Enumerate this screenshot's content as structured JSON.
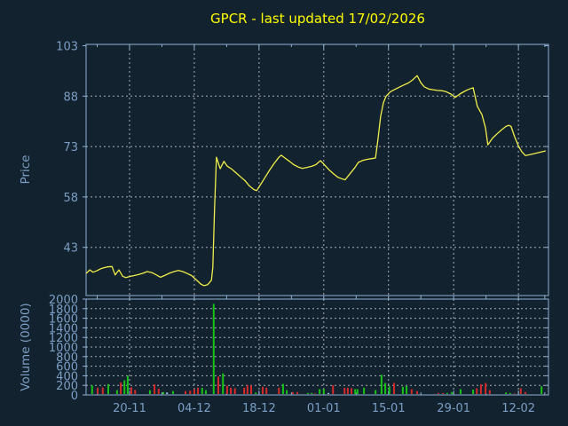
{
  "window": {
    "background": "#13222f"
  },
  "chart_data": {
    "type": "line+bar",
    "title": "GPCR - last updated 17/02/2026",
    "title_color": "#ffff00",
    "axis_color": "#8fb3d6",
    "text_color": "#7b9fc4",
    "grid_color": "#ccd2d8",
    "x_ticks": [
      {
        "label": "20-11",
        "pos": 0.094
      },
      {
        "label": "04-12",
        "pos": 0.234
      },
      {
        "label": "18-12",
        "pos": 0.374
      },
      {
        "label": "01-01",
        "pos": 0.514
      },
      {
        "label": "15-01",
        "pos": 0.654
      },
      {
        "label": "29-01",
        "pos": 0.795
      },
      {
        "label": "12-02",
        "pos": 0.935
      }
    ],
    "x_minor_ticks": [
      0.024,
      0.164,
      0.304,
      0.444,
      0.584,
      0.724,
      0.865,
      0.992
    ],
    "price_panel": {
      "ylabel": "Price",
      "yticks": [
        43,
        58,
        73,
        88,
        103
      ],
      "ymin": 28.5,
      "ymax": 103,
      "line_color": "#f0ee4a",
      "series": [
        [
          0.0,
          35.2
        ],
        [
          0.008,
          36.3
        ],
        [
          0.015,
          35.6
        ],
        [
          0.023,
          36.0
        ],
        [
          0.031,
          36.6
        ],
        [
          0.038,
          36.9
        ],
        [
          0.046,
          37.2
        ],
        [
          0.056,
          37.3
        ],
        [
          0.063,
          34.8
        ],
        [
          0.071,
          36.3
        ],
        [
          0.079,
          34.4
        ],
        [
          0.086,
          34.0
        ],
        [
          0.094,
          34.3
        ],
        [
          0.104,
          34.6
        ],
        [
          0.113,
          34.9
        ],
        [
          0.123,
          35.3
        ],
        [
          0.132,
          35.8
        ],
        [
          0.142,
          35.5
        ],
        [
          0.152,
          34.8
        ],
        [
          0.161,
          34.1
        ],
        [
          0.171,
          34.7
        ],
        [
          0.18,
          35.3
        ],
        [
          0.19,
          35.8
        ],
        [
          0.2,
          36.1
        ],
        [
          0.209,
          35.8
        ],
        [
          0.219,
          35.2
        ],
        [
          0.228,
          34.6
        ],
        [
          0.238,
          33.4
        ],
        [
          0.248,
          32.1
        ],
        [
          0.255,
          31.6
        ],
        [
          0.263,
          31.9
        ],
        [
          0.271,
          33.2
        ],
        [
          0.274,
          37.0
        ],
        [
          0.278,
          55.0
        ],
        [
          0.282,
          69.8
        ],
        [
          0.29,
          66.4
        ],
        [
          0.298,
          68.6
        ],
        [
          0.305,
          67.2
        ],
        [
          0.315,
          66.3
        ],
        [
          0.324,
          65.2
        ],
        [
          0.334,
          64.0
        ],
        [
          0.344,
          62.8
        ],
        [
          0.353,
          61.3
        ],
        [
          0.363,
          60.2
        ],
        [
          0.369,
          59.9
        ],
        [
          0.378,
          61.8
        ],
        [
          0.388,
          64.0
        ],
        [
          0.397,
          66.0
        ],
        [
          0.407,
          68.0
        ],
        [
          0.417,
          69.8
        ],
        [
          0.422,
          70.4
        ],
        [
          0.43,
          69.6
        ],
        [
          0.44,
          68.6
        ],
        [
          0.449,
          67.6
        ],
        [
          0.459,
          66.9
        ],
        [
          0.468,
          66.5
        ],
        [
          0.478,
          66.8
        ],
        [
          0.488,
          67.1
        ],
        [
          0.497,
          67.6
        ],
        [
          0.507,
          68.8
        ],
        [
          0.516,
          67.5
        ],
        [
          0.526,
          66.0
        ],
        [
          0.536,
          64.8
        ],
        [
          0.545,
          63.8
        ],
        [
          0.555,
          63.3
        ],
        [
          0.56,
          63.1
        ],
        [
          0.57,
          64.8
        ],
        [
          0.58,
          66.5
        ],
        [
          0.589,
          68.3
        ],
        [
          0.599,
          68.9
        ],
        [
          0.608,
          69.2
        ],
        [
          0.618,
          69.4
        ],
        [
          0.626,
          69.6
        ],
        [
          0.631,
          75.0
        ],
        [
          0.637,
          82.0
        ],
        [
          0.643,
          86.0
        ],
        [
          0.649,
          88.0
        ],
        [
          0.658,
          89.3
        ],
        [
          0.668,
          90.0
        ],
        [
          0.678,
          90.7
        ],
        [
          0.687,
          91.3
        ],
        [
          0.697,
          91.9
        ],
        [
          0.706,
          92.8
        ],
        [
          0.716,
          94.1
        ],
        [
          0.724,
          92.0
        ],
        [
          0.731,
          90.8
        ],
        [
          0.741,
          90.1
        ],
        [
          0.75,
          89.9
        ],
        [
          0.76,
          89.7
        ],
        [
          0.77,
          89.6
        ],
        [
          0.779,
          89.3
        ],
        [
          0.789,
          88.6
        ],
        [
          0.798,
          87.6
        ],
        [
          0.808,
          88.6
        ],
        [
          0.818,
          89.4
        ],
        [
          0.827,
          90.0
        ],
        [
          0.837,
          90.5
        ],
        [
          0.846,
          85.0
        ],
        [
          0.856,
          82.5
        ],
        [
          0.864,
          78.5
        ],
        [
          0.869,
          73.5
        ],
        [
          0.879,
          75.5
        ],
        [
          0.889,
          76.8
        ],
        [
          0.898,
          77.9
        ],
        [
          0.908,
          79.0
        ],
        [
          0.914,
          79.3
        ],
        [
          0.919,
          79.0
        ],
        [
          0.927,
          75.8
        ],
        [
          0.935,
          73.2
        ],
        [
          0.942,
          71.5
        ],
        [
          0.95,
          70.3
        ],
        [
          0.96,
          70.6
        ],
        [
          0.969,
          70.9
        ],
        [
          0.979,
          71.2
        ],
        [
          0.988,
          71.5
        ],
        [
          0.994,
          71.7
        ]
      ]
    },
    "volume_panel": {
      "ylabel": "Volume (0000)",
      "yticks": [
        0,
        200,
        400,
        600,
        800,
        1000,
        1200,
        1400,
        1600,
        1800,
        2000
      ],
      "ymin": 0,
      "ymax": 2000,
      "up_color": "#17c317",
      "down_color": "#d42a2a",
      "neutral_color": "#9ec7e8",
      "bars": [
        [
          0.013,
          200,
          "u"
        ],
        [
          0.025,
          150,
          "d"
        ],
        [
          0.036,
          155,
          "d"
        ],
        [
          0.048,
          225,
          "u"
        ],
        [
          0.067,
          100,
          "u"
        ],
        [
          0.075,
          260,
          "d"
        ],
        [
          0.083,
          305,
          "u"
        ],
        [
          0.09,
          400,
          "u"
        ],
        [
          0.098,
          160,
          "d"
        ],
        [
          0.106,
          105,
          "d"
        ],
        [
          0.138,
          100,
          "u"
        ],
        [
          0.148,
          220,
          "d"
        ],
        [
          0.157,
          130,
          "d"
        ],
        [
          0.167,
          60,
          "u"
        ],
        [
          0.175,
          50,
          "n"
        ],
        [
          0.188,
          80,
          "u"
        ],
        [
          0.215,
          80,
          "d"
        ],
        [
          0.225,
          90,
          "d"
        ],
        [
          0.234,
          120,
          "d"
        ],
        [
          0.242,
          150,
          "d"
        ],
        [
          0.251,
          150,
          "u"
        ],
        [
          0.259,
          100,
          "u"
        ],
        [
          0.276,
          1900,
          "u"
        ],
        [
          0.286,
          380,
          "d"
        ],
        [
          0.296,
          450,
          "u"
        ],
        [
          0.305,
          190,
          "d"
        ],
        [
          0.313,
          150,
          "d"
        ],
        [
          0.322,
          140,
          "d"
        ],
        [
          0.342,
          150,
          "d"
        ],
        [
          0.349,
          200,
          "d"
        ],
        [
          0.357,
          200,
          "d"
        ],
        [
          0.367,
          50,
          "u"
        ],
        [
          0.382,
          170,
          "d"
        ],
        [
          0.39,
          150,
          "d"
        ],
        [
          0.417,
          150,
          "d"
        ],
        [
          0.426,
          230,
          "u"
        ],
        [
          0.434,
          100,
          "u"
        ],
        [
          0.447,
          60,
          "d"
        ],
        [
          0.457,
          60,
          "d"
        ],
        [
          0.48,
          40,
          "u"
        ],
        [
          0.488,
          40,
          "u"
        ],
        [
          0.495,
          30,
          "d"
        ],
        [
          0.505,
          120,
          "u"
        ],
        [
          0.514,
          125,
          "u"
        ],
        [
          0.524,
          40,
          "n"
        ],
        [
          0.534,
          200,
          "d"
        ],
        [
          0.559,
          150,
          "d"
        ],
        [
          0.566,
          150,
          "d"
        ],
        [
          0.574,
          140,
          "d"
        ],
        [
          0.582,
          120,
          "u"
        ],
        [
          0.587,
          120,
          "u"
        ],
        [
          0.601,
          150,
          "u"
        ],
        [
          0.626,
          100,
          "u"
        ],
        [
          0.639,
          420,
          "u"
        ],
        [
          0.647,
          250,
          "u"
        ],
        [
          0.656,
          180,
          "u"
        ],
        [
          0.666,
          250,
          "d"
        ],
        [
          0.685,
          170,
          "u"
        ],
        [
          0.693,
          185,
          "u"
        ],
        [
          0.704,
          120,
          "d"
        ],
        [
          0.716,
          80,
          "d"
        ],
        [
          0.762,
          40,
          "d"
        ],
        [
          0.772,
          40,
          "d"
        ],
        [
          0.781,
          40,
          "u"
        ],
        [
          0.791,
          60,
          "u"
        ],
        [
          0.81,
          120,
          "u"
        ],
        [
          0.837,
          110,
          "u"
        ],
        [
          0.845,
          140,
          "d"
        ],
        [
          0.854,
          220,
          "d"
        ],
        [
          0.864,
          250,
          "d"
        ],
        [
          0.873,
          100,
          "d"
        ],
        [
          0.908,
          50,
          "u"
        ],
        [
          0.917,
          40,
          "u"
        ],
        [
          0.927,
          30,
          "d"
        ],
        [
          0.94,
          140,
          "d"
        ],
        [
          0.95,
          60,
          "d"
        ],
        [
          0.985,
          180,
          "u"
        ]
      ]
    }
  }
}
